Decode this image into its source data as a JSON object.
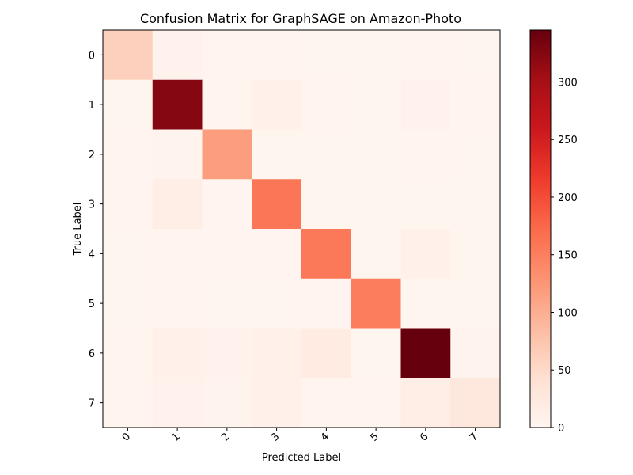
{
  "chart_data": {
    "type": "heatmap",
    "title": "Confusion Matrix for GraphSAGE on Amazon-Photo",
    "xlabel": "Predicted Label",
    "ylabel": "True Label",
    "x_categories": [
      "0",
      "1",
      "2",
      "3",
      "4",
      "5",
      "6",
      "7"
    ],
    "y_categories": [
      "0",
      "1",
      "2",
      "3",
      "4",
      "5",
      "6",
      "7"
    ],
    "matrix": [
      [
        62,
        6,
        2,
        3,
        1,
        1,
        3,
        1
      ],
      [
        1,
        325,
        3,
        10,
        2,
        1,
        6,
        2
      ],
      [
        2,
        4,
        118,
        1,
        1,
        1,
        2,
        1
      ],
      [
        2,
        14,
        2,
        160,
        1,
        1,
        1,
        1
      ],
      [
        1,
        3,
        2,
        2,
        157,
        1,
        8,
        1
      ],
      [
        1,
        2,
        1,
        1,
        2,
        152,
        1,
        1
      ],
      [
        3,
        8,
        6,
        9,
        20,
        1,
        345,
        4
      ],
      [
        3,
        6,
        4,
        10,
        3,
        3,
        15,
        28
      ]
    ],
    "colormap": "Reds",
    "colorbar": {
      "min": 0,
      "max": 345,
      "ticks": [
        0,
        50,
        100,
        150,
        200,
        250,
        300
      ]
    }
  }
}
